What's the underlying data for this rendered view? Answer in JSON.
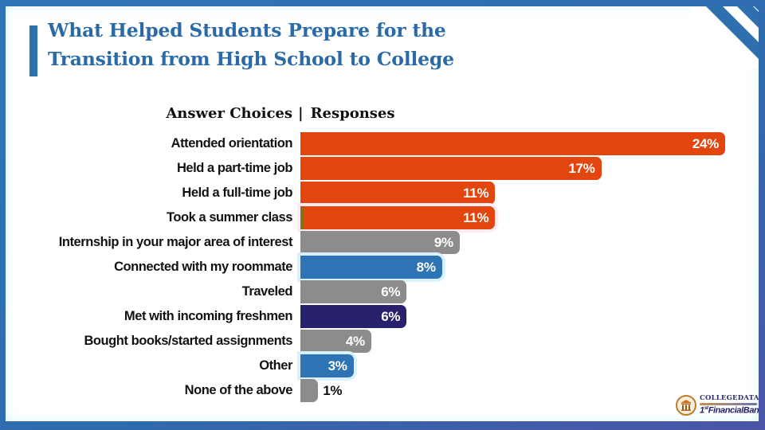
{
  "frame": {
    "border_color": "#2e6dad",
    "accent_color": "#2e6fae"
  },
  "title": {
    "line1": "What Helped Students Prepare for the",
    "line2": "Transition from High School to College",
    "color": "#2a6aa8"
  },
  "table_header": {
    "answer_choices": "Answer Choices",
    "separator": "|",
    "responses": "Responses"
  },
  "chart_data": {
    "type": "bar",
    "orientation": "horizontal",
    "title": "What Helped Students Prepare for the Transition from High School to College",
    "xlabel": "Responses",
    "ylabel": "Answer Choices",
    "xlim": [
      0,
      24
    ],
    "grid": false,
    "legend": false,
    "value_suffix": "%",
    "categories": [
      "Attended orientation",
      "Held a part-time job",
      "Held a full-time job",
      "Took a summer class",
      "Internship in your major area of interest",
      "Connected with my roommate",
      "Traveled",
      "Met with incoming freshmen",
      "Bought books/started assignments",
      "Other",
      "None of the above"
    ],
    "values": [
      24,
      17,
      11,
      11,
      9,
      8,
      6,
      6,
      4,
      3,
      1
    ],
    "rows": [
      {
        "label": "Attended orientation",
        "value": 24,
        "color": "#e2450e"
      },
      {
        "label": "Held a part-time job",
        "value": 17,
        "color": "#e2450e"
      },
      {
        "label": "Held a full-time job",
        "value": 11,
        "color": "#e2450e"
      },
      {
        "label": "Took a summer class",
        "value": 11,
        "color": "#e2450e",
        "halo": "pink",
        "notch": true
      },
      {
        "label": "Internship in your major area of interest",
        "value": 9,
        "color": "#8c8c8c"
      },
      {
        "label": "Connected with my roommate",
        "value": 8,
        "color": "#2e74b5",
        "halo": "cyan"
      },
      {
        "label": "Traveled",
        "value": 6,
        "color": "#8c8c8c"
      },
      {
        "label": "Met with incoming freshmen",
        "value": 6,
        "color": "#28226e"
      },
      {
        "label": "Bought books/started assignments",
        "value": 4,
        "color": "#8c8c8c"
      },
      {
        "label": "Other",
        "value": 3,
        "color": "#2e74b5",
        "halo": "cyan"
      },
      {
        "label": "None of the above",
        "value": 1,
        "color": "#8c8c8c",
        "value_outside": true
      }
    ],
    "bar_colors_legend": {
      "#e2450e": "orange",
      "#8c8c8c": "gray",
      "#2e74b5": "blue",
      "#28226e": "navy"
    }
  },
  "logo": {
    "brand": "COLLEGEDATA.COM",
    "partner_prefix": "1",
    "partner_sup": "st",
    "partner_name": "FinancialBank"
  }
}
